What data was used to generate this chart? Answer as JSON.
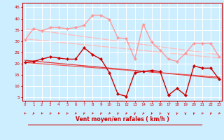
{
  "bg_color": "#cceeff",
  "grid_color": "#ffffff",
  "xlabel": "Vent moyen/en rafales ( km/h )",
  "x_ticks": [
    0,
    1,
    2,
    3,
    4,
    5,
    6,
    7,
    8,
    9,
    10,
    11,
    12,
    13,
    14,
    15,
    16,
    17,
    18,
    19,
    20,
    21,
    22,
    23
  ],
  "y_ticks": [
    5,
    10,
    15,
    20,
    25,
    30,
    35,
    40,
    45
  ],
  "ylim": [
    3.5,
    47
  ],
  "xlim": [
    -0.3,
    23.3
  ],
  "line_pink_marker": {
    "x": [
      0,
      1,
      2,
      3,
      4,
      5,
      6,
      7,
      8,
      9,
      10,
      11,
      12,
      13,
      14,
      15,
      16,
      17,
      18,
      19,
      20,
      21,
      22,
      23
    ],
    "y": [
      30.5,
      35.5,
      34.5,
      36,
      36,
      35.5,
      36,
      37,
      41.5,
      41.5,
      39.5,
      31.5,
      31,
      22,
      37.5,
      29.5,
      26,
      22,
      21,
      24.5,
      29,
      29,
      29,
      23
    ],
    "color": "#ff9999",
    "lw": 1.0,
    "marker": "D",
    "ms": 2.2
  },
  "line_pink_trend1": {
    "x": [
      0,
      23
    ],
    "y": [
      35.5,
      24.0
    ],
    "color": "#ffbbbb",
    "lw": 0.9
  },
  "line_pink_trend2": {
    "x": [
      0,
      23
    ],
    "y": [
      31.0,
      22.5
    ],
    "color": "#ffbbbb",
    "lw": 0.9
  },
  "line_red_marker": {
    "x": [
      0,
      1,
      2,
      3,
      4,
      5,
      6,
      7,
      8,
      9,
      10,
      11,
      12,
      13,
      14,
      15,
      16,
      17,
      18,
      19,
      20,
      21,
      22,
      23
    ],
    "y": [
      20.5,
      21,
      22,
      23,
      22.5,
      22,
      22,
      27,
      24,
      22,
      16,
      6.5,
      5.5,
      16,
      16.5,
      17,
      16.5,
      6,
      9,
      6,
      19,
      18,
      18,
      13
    ],
    "color": "#cc0000",
    "lw": 1.0,
    "marker": "D",
    "ms": 2.2
  },
  "line_red_trend1": {
    "x": [
      0,
      23
    ],
    "y": [
      21.5,
      13.5
    ],
    "color": "#dd3333",
    "lw": 0.9
  },
  "line_red_trend2": {
    "x": [
      0,
      23
    ],
    "y": [
      20.5,
      14.0
    ],
    "color": "#ee5555",
    "lw": 0.9
  },
  "red_color": "#cc0000",
  "arrow_angles": [
    -135,
    -130,
    -135,
    -130,
    -135,
    -130,
    -135,
    -130,
    -135,
    -130,
    -135,
    -125,
    -130,
    -90,
    -130,
    -125,
    -125,
    -90,
    -105,
    -90,
    -130,
    -130,
    -130,
    -135
  ]
}
